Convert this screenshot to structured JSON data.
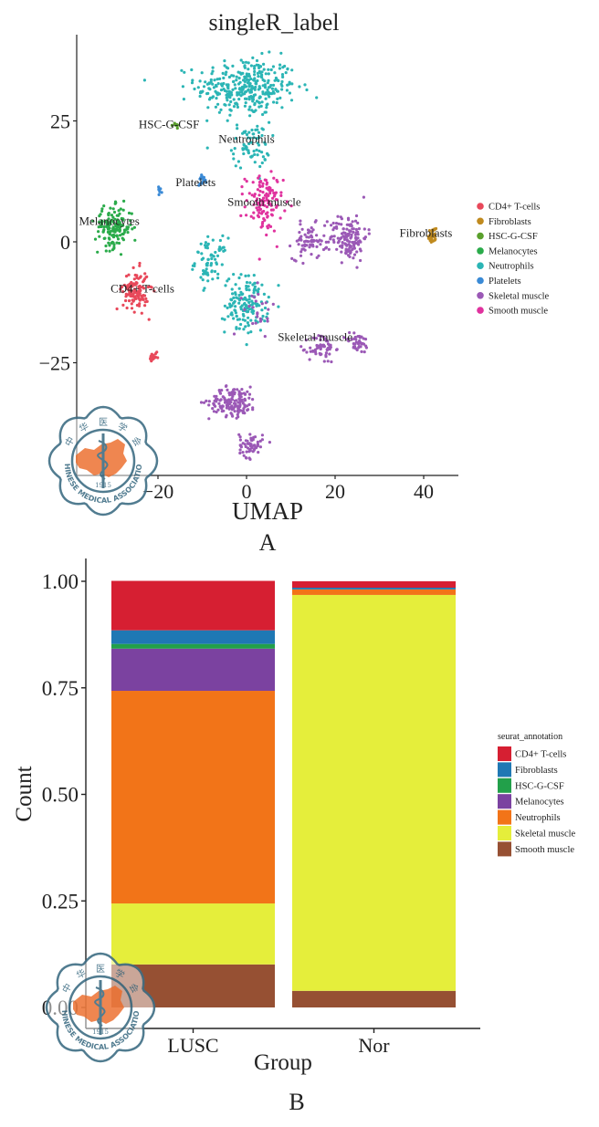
{
  "figure": {
    "panel_a_label": "A",
    "panel_b_label": "B",
    "watermark_text_top": "中 华 医 学 会",
    "watermark_text_bottom": "CHINESE MEDICAL ASSOCIATION",
    "watermark_year": "1915"
  },
  "chart_data": [
    {
      "type": "scatter",
      "title": "singleR_label",
      "xlabel": "UMAP",
      "ylabel": "",
      "xlim": [
        -39,
        48
      ],
      "ylim": [
        -49,
        43
      ],
      "xticks": [
        -20,
        0,
        20,
        40
      ],
      "xtick_labels": [
        "−20",
        "0",
        "20",
        "40"
      ],
      "yticks": [
        25,
        0,
        -25
      ],
      "ytick_labels": [
        "25",
        "0",
        "−25"
      ],
      "grid": false,
      "legend_position": "right",
      "legend": [
        {
          "name": "CD4+ T-cells",
          "color": "#e8485a"
        },
        {
          "name": "Fibroblasts",
          "color": "#c08a1e"
        },
        {
          "name": "HSC-G-CSF",
          "color": "#5aa02c"
        },
        {
          "name": "Melanocytes",
          "color": "#2aab4a"
        },
        {
          "name": "Neutrophils",
          "color": "#2bb5b5"
        },
        {
          "name": "Platelets",
          "color": "#3a8ad6"
        },
        {
          "name": "Skeletal muscle",
          "color": "#9b59b6"
        },
        {
          "name": "Smooth muscle",
          "color": "#e0329e"
        }
      ],
      "clusters": [
        {
          "celltype": "Neutrophils",
          "center": [
            0,
            32
          ],
          "spread": [
            9.5,
            5
          ],
          "count": 330
        },
        {
          "celltype": "Neutrophils",
          "center": [
            1,
            20
          ],
          "spread": [
            3.5,
            4
          ],
          "count": 70
        },
        {
          "celltype": "Neutrophils",
          "center": [
            -8,
            -4
          ],
          "spread": [
            3,
            4
          ],
          "count": 70
        },
        {
          "celltype": "Neutrophils",
          "center": [
            0,
            -13
          ],
          "spread": [
            4,
            5
          ],
          "count": 150
        },
        {
          "celltype": "Smooth muscle",
          "center": [
            4,
            8
          ],
          "spread": [
            3.5,
            5
          ],
          "count": 120
        },
        {
          "celltype": "Skeletal muscle",
          "center": [
            14,
            0
          ],
          "spread": [
            3,
            3
          ],
          "count": 70
        },
        {
          "celltype": "Skeletal muscle",
          "center": [
            23,
            1
          ],
          "spread": [
            3.5,
            4
          ],
          "count": 140
        },
        {
          "celltype": "Skeletal muscle",
          "center": [
            17,
            -22
          ],
          "spread": [
            2.5,
            2.5
          ],
          "count": 60
        },
        {
          "celltype": "Skeletal muscle",
          "center": [
            25,
            -21
          ],
          "spread": [
            2.5,
            1.8
          ],
          "count": 40
        },
        {
          "celltype": "Skeletal muscle",
          "center": [
            -3,
            -33
          ],
          "spread": [
            4.5,
            2.5
          ],
          "count": 150
        },
        {
          "celltype": "Skeletal muscle",
          "center": [
            1,
            -42
          ],
          "spread": [
            2.2,
            2.2
          ],
          "count": 60
        },
        {
          "celltype": "Skeletal muscle",
          "center": [
            3,
            -14
          ],
          "spread": [
            3,
            4
          ],
          "count": 25
        },
        {
          "celltype": "Melanocytes",
          "center": [
            -30,
            3
          ],
          "spread": [
            3.5,
            3.5
          ],
          "count": 150
        },
        {
          "celltype": "CD4+ T-cells",
          "center": [
            -25,
            -10
          ],
          "spread": [
            2.4,
            3.5
          ],
          "count": 120
        },
        {
          "celltype": "CD4+ T-cells",
          "center": [
            -21,
            -24
          ],
          "spread": [
            0.8,
            0.8
          ],
          "count": 20
        },
        {
          "celltype": "HSC-G-CSF",
          "center": [
            -16,
            24
          ],
          "spread": [
            0.8,
            0.6
          ],
          "count": 8
        },
        {
          "celltype": "Platelets",
          "center": [
            -19.5,
            11
          ],
          "spread": [
            0.4,
            0.8
          ],
          "count": 10
        },
        {
          "celltype": "Platelets",
          "center": [
            -10,
            13
          ],
          "spread": [
            0.8,
            1.0
          ],
          "count": 16
        },
        {
          "celltype": "Fibroblasts",
          "center": [
            42,
            1
          ],
          "spread": [
            0.8,
            1.6
          ],
          "count": 28
        }
      ],
      "annotations": [
        {
          "text": "HSC-G-CSF",
          "x": -17.5,
          "y": 23.5
        },
        {
          "text": "Neutrophils",
          "x": 0,
          "y": 20.5
        },
        {
          "text": "Platelets",
          "x": -11.5,
          "y": 11.5
        },
        {
          "text": "Smooth muscle",
          "x": 4,
          "y": 7.5
        },
        {
          "text": "Melanocytes",
          "x": -31,
          "y": 3.5
        },
        {
          "text": "Fibroblasts",
          "x": 40.5,
          "y": 1
        },
        {
          "text": "CD4+ T-cells",
          "x": -23.5,
          "y": -10.5
        },
        {
          "text": "Skeletal muscle",
          "x": 15.5,
          "y": -20.5
        }
      ]
    },
    {
      "type": "bar",
      "stacked": true,
      "title": "",
      "xlabel": "Group",
      "ylabel": "Count",
      "ylim": [
        0,
        1.05
      ],
      "yticks": [
        0,
        0.25,
        0.5,
        0.75,
        1.0
      ],
      "ytick_labels": [
        "0.00",
        "0.25",
        "0.50",
        "0.75",
        "1.00"
      ],
      "grid": false,
      "legend_title": "seurat_annotation",
      "legend_position": "right",
      "categories": [
        "LUSC",
        "Nor"
      ],
      "series": [
        {
          "name": "CD4+ T-cells",
          "color": "#d61f32",
          "values": [
            0.116,
            0.015
          ]
        },
        {
          "name": "Fibroblasts",
          "color": "#1f78b4",
          "values": [
            0.032,
            0.004
          ]
        },
        {
          "name": "HSC-G-CSF",
          "color": "#22a04a",
          "values": [
            0.011,
            0.0
          ]
        },
        {
          "name": "Melanocytes",
          "color": "#7b42a0",
          "values": [
            0.099,
            0.0
          ]
        },
        {
          "name": "Neutrophils",
          "color": "#f27418",
          "values": [
            0.499,
            0.013
          ]
        },
        {
          "name": "Skeletal muscle",
          "color": "#e5ee3b",
          "values": [
            0.143,
            0.929
          ]
        },
        {
          "name": "Smooth muscle",
          "color": "#965033",
          "values": [
            0.101,
            0.039
          ]
        }
      ]
    }
  ]
}
